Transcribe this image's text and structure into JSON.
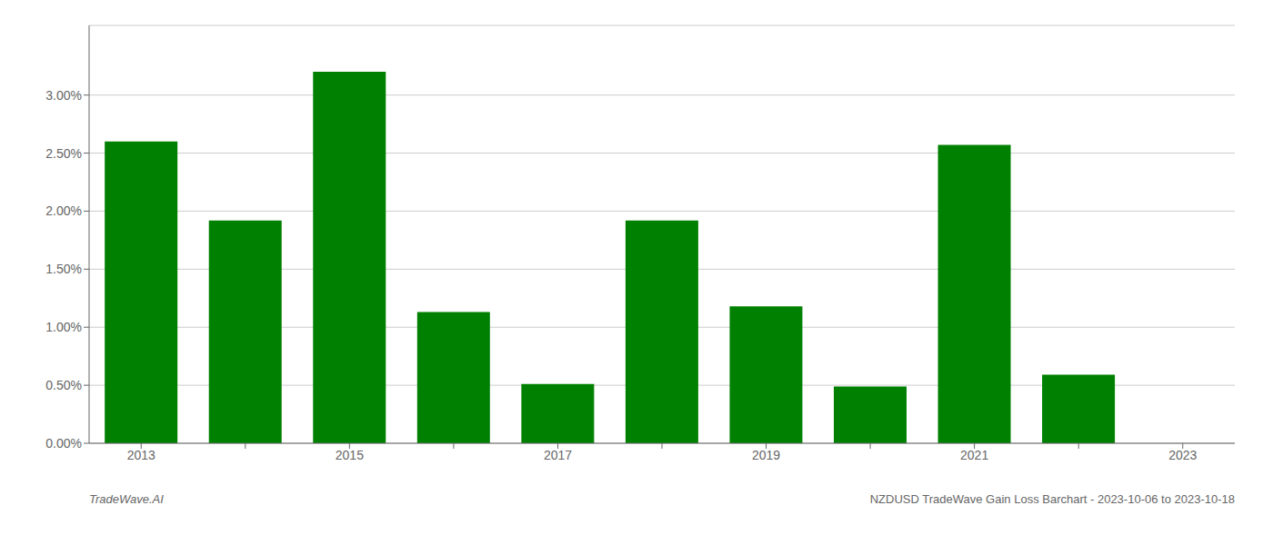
{
  "chart_data": {
    "type": "bar",
    "categories": [
      "2013",
      null,
      "2015",
      null,
      "2017",
      null,
      "2019",
      null,
      "2021",
      null,
      "2023"
    ],
    "values": [
      0.026,
      0.0192,
      0.032,
      0.0113,
      0.0051,
      0.0192,
      0.0118,
      0.0049,
      0.0257,
      0.0059,
      null
    ],
    "color": "#008000",
    "ylim": [
      0.0,
      0.036
    ],
    "yticks": [
      {
        "value": 0.0,
        "label": "0.00%"
      },
      {
        "value": 0.005,
        "label": "0.50%"
      },
      {
        "value": 0.01,
        "label": "1.00%"
      },
      {
        "value": 0.015,
        "label": "1.50%"
      },
      {
        "value": 0.02,
        "label": "2.00%"
      },
      {
        "value": 0.025,
        "label": "2.50%"
      },
      {
        "value": 0.03,
        "label": "3.00%"
      }
    ],
    "grid": true,
    "annotations": [
      "TradeWave.AI",
      "NZDUSD TradeWave Gain Loss Barchart - 2023-10-06 to 2023-10-18"
    ]
  }
}
